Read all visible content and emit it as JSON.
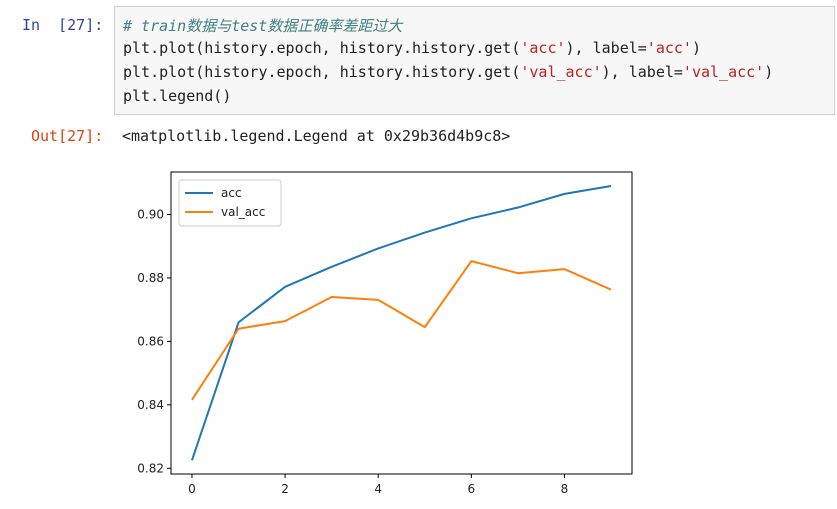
{
  "cell": {
    "in_prompt": "In  [27]:",
    "out_prompt": "Out[27]:",
    "code": {
      "comment": "# train数据与test数据正确率差距过大",
      "line2_pre": "plt.plot(history.epoch, history.history.get(",
      "line2_str": "'acc'",
      "line2_mid": "), label=",
      "line2_label": "'acc'",
      "line2_post": ")",
      "line3_pre": "plt.plot(history.epoch, history.history.get(",
      "line3_str": "'val_acc'",
      "line3_mid": "), label=",
      "line3_label": "'val_acc'",
      "line3_post": ")",
      "line4": "plt.legend()"
    },
    "output_text": "<matplotlib.legend.Legend at 0x29b36d4b9c8>"
  },
  "chart_data": {
    "type": "line",
    "x": [
      0,
      1,
      2,
      3,
      4,
      5,
      6,
      7,
      8,
      9
    ],
    "series": [
      {
        "name": "acc",
        "color": "#1f77b4",
        "values": [
          0.8225,
          0.866,
          0.8772,
          0.8835,
          0.8893,
          0.8943,
          0.8988,
          0.9022,
          0.9065,
          0.909
        ]
      },
      {
        "name": "val_acc",
        "color": "#ff7f0e",
        "values": [
          0.8416,
          0.864,
          0.8664,
          0.874,
          0.8731,
          0.8645,
          0.8853,
          0.8815,
          0.8828,
          0.8763
        ]
      }
    ],
    "xticks": [
      "0",
      "2",
      "4",
      "6",
      "8"
    ],
    "yticks": [
      "0.82",
      "0.84",
      "0.86",
      "0.88",
      "0.90"
    ],
    "xlim": [
      -0.45,
      9.45
    ],
    "ylim": [
      0.8182,
      0.9134
    ],
    "legend_position": "top-left",
    "grid": false
  }
}
